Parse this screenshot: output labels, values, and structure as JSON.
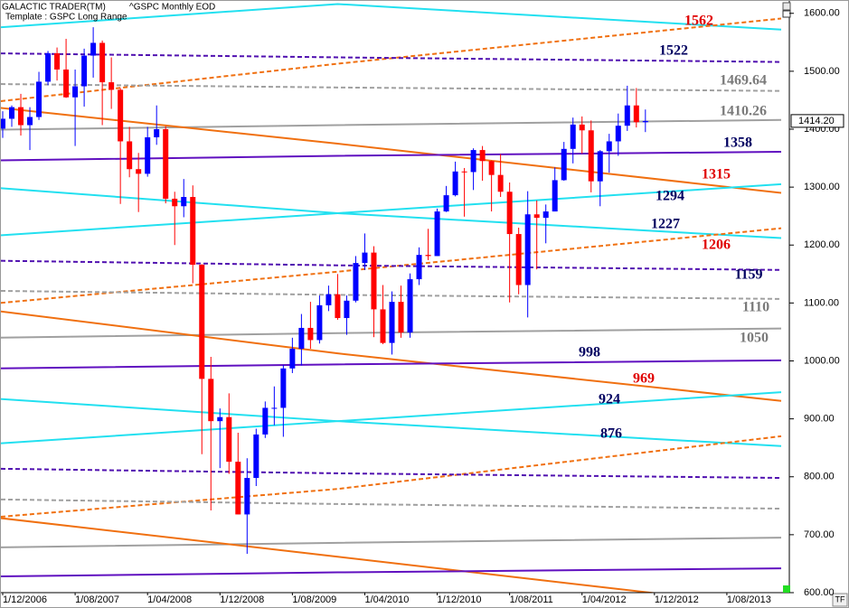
{
  "chart_data": {
    "type": "candlestick",
    "title": "GALACTIC TRADER(TM)",
    "subtitle": "^GSPC Monthly EOD",
    "template": "Template : GSPC Long Range",
    "up_color": "#0000ff",
    "down_color": "#ff0000",
    "xlim": [
      "2006-11-22",
      "2014-02-28"
    ],
    "ylim": [
      600,
      1623
    ],
    "xticks": [
      {
        "value": "2006-12-01",
        "label": "1/12/2006"
      },
      {
        "value": "2007-08-01",
        "label": "1/08/2007"
      },
      {
        "value": "2008-04-01",
        "label": "1/04/2008"
      },
      {
        "value": "2008-12-01",
        "label": "1/12/2008"
      },
      {
        "value": "2009-08-01",
        "label": "1/08/2009"
      },
      {
        "value": "2010-04-01",
        "label": "1/04/2010"
      },
      {
        "value": "2010-12-01",
        "label": "1/12/2010"
      },
      {
        "value": "2011-08-01",
        "label": "1/08/2011"
      },
      {
        "value": "2012-04-01",
        "label": "1/04/2012"
      },
      {
        "value": "2012-12-01",
        "label": "1/12/2012"
      },
      {
        "value": "2013-08-01",
        "label": "1/08/2013"
      }
    ],
    "yticks": [
      {
        "value": 600,
        "label": "600.00"
      },
      {
        "value": 700,
        "label": "700.00"
      },
      {
        "value": 800,
        "label": "800.00"
      },
      {
        "value": 900,
        "label": "900.00"
      },
      {
        "value": 1000,
        "label": "1000.00"
      },
      {
        "value": 1100,
        "label": "1100.00"
      },
      {
        "value": 1200,
        "label": "1200.00"
      },
      {
        "value": 1300,
        "label": "1300.00"
      },
      {
        "value": 1400,
        "label": "1400.00"
      },
      {
        "value": 1500,
        "label": "1500.00"
      },
      {
        "value": 1600,
        "label": "1600.00"
      }
    ],
    "last_price": {
      "value": 1414.2,
      "label": "1414.20"
    },
    "x": [
      "2006-12-01",
      "2007-01-01",
      "2007-02-01",
      "2007-03-01",
      "2007-04-01",
      "2007-05-01",
      "2007-06-01",
      "2007-07-01",
      "2007-08-01",
      "2007-09-01",
      "2007-10-01",
      "2007-11-01",
      "2007-12-01",
      "2008-01-01",
      "2008-02-01",
      "2008-03-01",
      "2008-04-01",
      "2008-05-01",
      "2008-06-01",
      "2008-07-01",
      "2008-08-01",
      "2008-09-01",
      "2008-10-01",
      "2008-11-01",
      "2008-12-01",
      "2009-01-01",
      "2009-02-01",
      "2009-03-01",
      "2009-04-01",
      "2009-05-01",
      "2009-06-01",
      "2009-07-01",
      "2009-08-01",
      "2009-09-01",
      "2009-10-01",
      "2009-11-01",
      "2009-12-01",
      "2010-01-01",
      "2010-02-01",
      "2010-03-01",
      "2010-04-01",
      "2010-05-01",
      "2010-06-01",
      "2010-07-01",
      "2010-08-01",
      "2010-09-01",
      "2010-10-01",
      "2010-11-01",
      "2010-12-01",
      "2011-01-01",
      "2011-02-01",
      "2011-03-01",
      "2011-04-01",
      "2011-05-01",
      "2011-06-01",
      "2011-07-01",
      "2011-08-01",
      "2011-09-01",
      "2011-10-01",
      "2011-11-01",
      "2011-12-01",
      "2012-01-01",
      "2012-02-01",
      "2012-03-01",
      "2012-04-01",
      "2012-05-01",
      "2012-06-01",
      "2012-07-01",
      "2012-08-01",
      "2012-09-01",
      "2012-10-01",
      "2012-11-01"
    ],
    "open": [
      1401,
      1418,
      1438,
      1407,
      1421,
      1482,
      1531,
      1503,
      1455,
      1474,
      1527,
      1549,
      1481,
      1468,
      1379,
      1331,
      1323,
      1386,
      1400,
      1280,
      1267,
      1283,
      1166,
      969,
      896,
      903,
      826,
      735,
      798,
      873,
      919,
      919,
      987,
      1021,
      1057,
      1036,
      1096,
      1115,
      1074,
      1104,
      1169,
      1187,
      1089,
      1031,
      1102,
      1049,
      1141,
      1183,
      1181,
      1258,
      1286,
      1327,
      1326,
      1364,
      1345,
      1321,
      1292,
      1219,
      1131,
      1253,
      1247,
      1258,
      1312,
      1366,
      1408,
      1398,
      1310,
      1362,
      1379,
      1406,
      1441,
      1412
    ],
    "high": [
      1431,
      1441,
      1461,
      1438,
      1499,
      1535,
      1541,
      1556,
      1503,
      1539,
      1576,
      1553,
      1524,
      1471,
      1404,
      1359,
      1404,
      1441,
      1405,
      1292,
      1314,
      1303,
      1167,
      1007,
      918,
      944,
      876,
      832,
      883,
      930,
      956,
      993,
      1040,
      1081,
      1102,
      1113,
      1130,
      1150,
      1113,
      1181,
      1220,
      1198,
      1131,
      1120,
      1130,
      1151,
      1196,
      1228,
      1263,
      1302,
      1344,
      1333,
      1367,
      1371,
      1346,
      1357,
      1308,
      1230,
      1293,
      1277,
      1270,
      1334,
      1378,
      1420,
      1422,
      1415,
      1364,
      1392,
      1427,
      1475,
      1471,
      1434
    ],
    "low": [
      1385,
      1404,
      1389,
      1364,
      1416,
      1476,
      1484,
      1454,
      1371,
      1439,
      1489,
      1407,
      1435,
      1271,
      1317,
      1257,
      1318,
      1373,
      1272,
      1200,
      1248,
      1134,
      839,
      742,
      815,
      805,
      735,
      667,
      784,
      867,
      889,
      869,
      979,
      992,
      1021,
      1030,
      1086,
      1071,
      1045,
      1101,
      1157,
      1041,
      1029,
      1011,
      1040,
      1040,
      1131,
      1174,
      1181,
      1257,
      1284,
      1249,
      1295,
      1311,
      1258,
      1283,
      1101,
      1115,
      1075,
      1158,
      1203,
      1258,
      1311,
      1341,
      1358,
      1291,
      1267,
      1325,
      1354,
      1397,
      1403,
      1395
    ],
    "close": [
      1418,
      1438,
      1407,
      1421,
      1482,
      1531,
      1503,
      1455,
      1474,
      1527,
      1549,
      1481,
      1468,
      1379,
      1331,
      1323,
      1386,
      1400,
      1280,
      1267,
      1283,
      1166,
      969,
      896,
      903,
      826,
      735,
      798,
      873,
      919,
      919,
      987,
      1021,
      1057,
      1036,
      1096,
      1115,
      1074,
      1104,
      1169,
      1187,
      1089,
      1031,
      1102,
      1049,
      1141,
      1183,
      1181,
      1258,
      1286,
      1327,
      1326,
      1364,
      1345,
      1321,
      1292,
      1219,
      1131,
      1253,
      1247,
      1258,
      1312,
      1366,
      1408,
      1398,
      1310,
      1362,
      1379,
      1406,
      1441,
      1412,
      1414.2
    ],
    "lines": [
      {
        "color": "#22e0f0",
        "style": "solid",
        "x": [
          "2006-11-01",
          "2010-01-01",
          "2014-02-01"
        ],
        "values": [
          1575,
          1616,
          1572
        ]
      },
      {
        "color": "#f07010",
        "style": "dashed",
        "x": [
          "2006-11-01",
          "2010-01-01",
          "2014-02-01"
        ],
        "values": [
          1447,
          1513,
          1591
        ]
      },
      {
        "color": "#5010b0",
        "style": "dashed",
        "x": [
          "2006-11-01",
          "2010-01-01",
          "2014-02-01"
        ],
        "values": [
          1531,
          1524,
          1516
        ]
      },
      {
        "color": "#a0a0a0",
        "style": "dashed",
        "x": [
          "2006-11-01",
          "2010-01-01",
          "2014-02-01"
        ],
        "values": [
          1478,
          1472,
          1466
        ]
      },
      {
        "color": "#a0a0a0",
        "style": "solid",
        "x": [
          "2006-11-01",
          "2010-01-01",
          "2014-02-01"
        ],
        "values": [
          1399,
          1407,
          1416
        ]
      },
      {
        "color": "#f07010",
        "style": "solid",
        "x": [
          "2006-11-01",
          "2010-01-01",
          "2014-02-01"
        ],
        "values": [
          1438,
          1375,
          1290
        ]
      },
      {
        "color": "#6010c0",
        "style": "solid",
        "x": [
          "2006-11-01",
          "2010-01-01",
          "2014-02-01"
        ],
        "values": [
          1346,
          1354,
          1361
        ]
      },
      {
        "color": "#22e0f0",
        "style": "solid",
        "x": [
          "2006-11-01",
          "2010-01-01",
          "2014-02-01"
        ],
        "values": [
          1299,
          1255,
          1212
        ]
      },
      {
        "color": "#22e0f0",
        "style": "solid",
        "x": [
          "2006-11-01",
          "2010-01-01",
          "2014-02-01"
        ],
        "values": [
          1216,
          1255,
          1305
        ]
      },
      {
        "color": "#f07010",
        "style": "dashed",
        "x": [
          "2006-11-01",
          "2010-01-01",
          "2014-02-01"
        ],
        "values": [
          1099,
          1154,
          1229
        ]
      },
      {
        "color": "#5010b0",
        "style": "dashed",
        "x": [
          "2006-11-01",
          "2010-01-01",
          "2014-02-01"
        ],
        "values": [
          1173,
          1165,
          1157
        ]
      },
      {
        "color": "#a0a0a0",
        "style": "dashed",
        "x": [
          "2006-11-01",
          "2010-01-01",
          "2014-02-01"
        ],
        "values": [
          1121,
          1114,
          1107
        ]
      },
      {
        "color": "#a0a0a0",
        "style": "solid",
        "x": [
          "2006-11-01",
          "2010-01-01",
          "2014-02-01"
        ],
        "values": [
          1040,
          1048,
          1056
        ]
      },
      {
        "color": "#f07010",
        "style": "solid",
        "x": [
          "2006-11-01",
          "2010-01-01",
          "2014-02-01"
        ],
        "values": [
          1087,
          1013,
          931
        ]
      },
      {
        "color": "#6010c0",
        "style": "solid",
        "x": [
          "2006-11-01",
          "2010-01-01",
          "2014-02-01"
        ],
        "values": [
          987,
          994,
          1001
        ]
      },
      {
        "color": "#22e0f0",
        "style": "solid",
        "x": [
          "2006-11-01",
          "2010-01-01",
          "2014-02-01"
        ],
        "values": [
          935,
          896,
          853
        ]
      },
      {
        "color": "#22e0f0",
        "style": "solid",
        "x": [
          "2006-11-01",
          "2010-01-01",
          "2014-02-01"
        ],
        "values": [
          857,
          896,
          946
        ]
      },
      {
        "color": "#f07010",
        "style": "dashed",
        "x": [
          "2006-11-01",
          "2010-01-01",
          "2014-02-01"
        ],
        "values": [
          730,
          779,
          870
        ]
      },
      {
        "color": "#5010b0",
        "style": "dashed",
        "x": [
          "2006-11-01",
          "2010-01-01",
          "2014-02-01"
        ],
        "values": [
          814,
          806,
          798
        ]
      },
      {
        "color": "#a0a0a0",
        "style": "dashed",
        "x": [
          "2006-11-01",
          "2010-01-01",
          "2014-02-01"
        ],
        "values": [
          761,
          753,
          745
        ]
      },
      {
        "color": "#a0a0a0",
        "style": "solid",
        "x": [
          "2006-11-01",
          "2010-01-01",
          "2014-02-01"
        ],
        "values": [
          678,
          686,
          695
        ]
      },
      {
        "color": "#f07010",
        "style": "solid",
        "x": [
          "2006-11-01",
          "2010-01-01",
          "2014-02-01"
        ],
        "values": [
          730,
          662,
          574
        ]
      },
      {
        "color": "#6010c0",
        "style": "solid",
        "x": [
          "2006-11-01",
          "2010-01-01",
          "2014-02-01"
        ],
        "values": [
          628,
          635,
          642
        ]
      }
    ],
    "annotations": [
      "1562",
      "1522",
      "1469.64",
      "1410.26",
      "1358",
      "1315",
      "1294",
      "1227",
      "1206",
      "1159",
      "1110",
      "1050",
      "998",
      "969",
      "924",
      "876"
    ],
    "footer_button": "TF"
  }
}
